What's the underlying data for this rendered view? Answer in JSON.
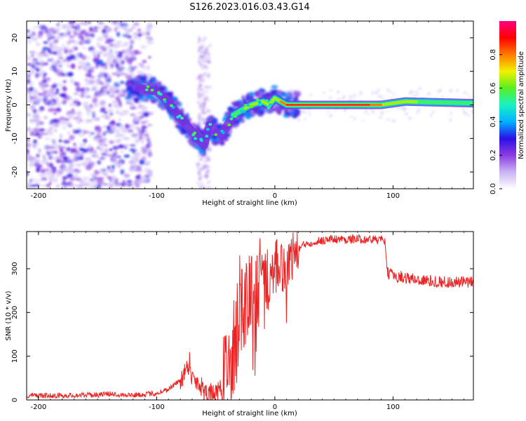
{
  "title": "S126.2023.016.03.43.G14",
  "chart_data": [
    {
      "type": "heatmap",
      "xlabel": "Height of straight line (km)",
      "ylabel": "Frequency (Hz)",
      "xlim": [
        -210,
        168
      ],
      "ylim": [
        -25,
        25
      ],
      "xticks": [
        -200,
        -100,
        0,
        100
      ],
      "yticks": [
        -20,
        -10,
        0,
        10,
        20
      ],
      "grid": false,
      "colorbar": {
        "label": "Normalized spectral amplitude",
        "range": [
          0.0,
          1.0
        ],
        "ticks": [
          0.0,
          0.2,
          0.4,
          0.6,
          0.8
        ],
        "tick_labels": [
          "0.0",
          "0.2",
          "0.4",
          "0.6",
          "0.8"
        ],
        "colormap": [
          "#ffffff",
          "#c9b3f5",
          "#8b3be0",
          "#2a10e6",
          "#00b2ff",
          "#19f2c2",
          "#57ee20",
          "#f2f000",
          "#ff7b00",
          "#ff0000",
          "#ff007f"
        ]
      },
      "ridge": {
        "x": [
          -115,
          -100,
          -90,
          -80,
          -70,
          -60,
          -55,
          -50,
          -45,
          -40,
          -35,
          -30,
          -25,
          -20,
          -10,
          -5,
          0,
          5,
          10,
          50,
          90,
          100,
          110,
          168
        ],
        "y": [
          5,
          4,
          1,
          -4,
          -8,
          -12,
          -6,
          -8,
          -9,
          -6,
          -3,
          -2,
          -1,
          0,
          1,
          0,
          2,
          1,
          0,
          0,
          0,
          0.5,
          1,
          0.5
        ]
      }
    },
    {
      "type": "line",
      "xlabel": "Height of straight line (km)",
      "ylabel": "SNR (10 * v/v)",
      "xlim": [
        -210,
        168
      ],
      "ylim": [
        0,
        385
      ],
      "xticks": [
        -200,
        -100,
        0,
        100
      ],
      "yticks": [
        0,
        100,
        200,
        300
      ],
      "grid": false,
      "color": "#ee2222",
      "series": [
        {
          "x": [
            -210,
            -180,
            -150,
            -140,
            -120,
            -100,
            -90,
            -80,
            -75,
            -72,
            -70,
            -65,
            -60,
            -55,
            -50,
            -45,
            -40,
            -35,
            -30,
            -25,
            -20,
            -15,
            -10,
            -5,
            0,
            5,
            10,
            15,
            20,
            25,
            30,
            40,
            50,
            60,
            70,
            80,
            90,
            93,
            95,
            100,
            110,
            120,
            140,
            168
          ],
          "values": [
            10,
            10,
            12,
            14,
            11,
            15,
            25,
            45,
            70,
            90,
            50,
            40,
            25,
            15,
            10,
            25,
            60,
            110,
            200,
            230,
            240,
            250,
            270,
            285,
            290,
            300,
            310,
            330,
            345,
            355,
            360,
            365,
            368,
            367,
            368,
            367,
            366,
            365,
            290,
            285,
            280,
            275,
            270,
            268
          ]
        }
      ]
    }
  ]
}
